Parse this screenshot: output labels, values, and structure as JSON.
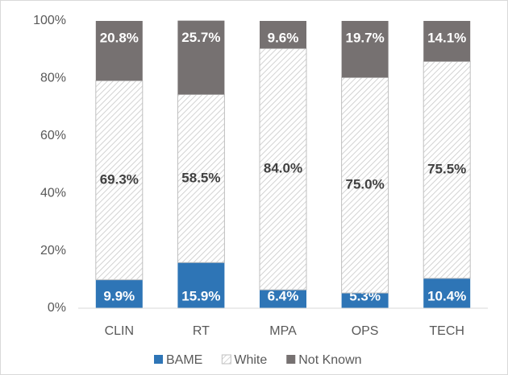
{
  "chart_data": {
    "type": "stacked_bar_percent",
    "categories": [
      "CLIN",
      "RT",
      "MPA",
      "OPS",
      "TECH"
    ],
    "series": [
      {
        "name": "BAME",
        "color": "#2e75b6",
        "values": [
          9.9,
          15.9,
          6.4,
          5.3,
          10.4
        ],
        "value_labels": [
          "9.9%",
          "15.9%",
          "6.4%",
          "5.3%",
          "10.4%"
        ]
      },
      {
        "name": "White",
        "color": "#c8c8c8",
        "pattern": "hatch",
        "values": [
          69.3,
          58.5,
          84.0,
          75.0,
          75.5
        ],
        "value_labels": [
          "69.3%",
          "58.5%",
          "84.0%",
          "75.0%",
          "75.5%"
        ]
      },
      {
        "name": "Not Known",
        "color": "#767171",
        "values": [
          20.8,
          25.7,
          9.6,
          19.7,
          14.1
        ],
        "value_labels": [
          "20.8%",
          "25.7%",
          "9.6%",
          "19.7%",
          "14.1%"
        ]
      }
    ],
    "ylim": [
      0,
      100
    ],
    "yticks": [
      {
        "value": 0,
        "label": "0%"
      },
      {
        "value": 20,
        "label": "20%"
      },
      {
        "value": 40,
        "label": "40%"
      },
      {
        "value": 60,
        "label": "60%"
      },
      {
        "value": 80,
        "label": "80%"
      },
      {
        "value": 100,
        "label": "100%"
      }
    ],
    "grid": false,
    "legend": "bottom"
  }
}
